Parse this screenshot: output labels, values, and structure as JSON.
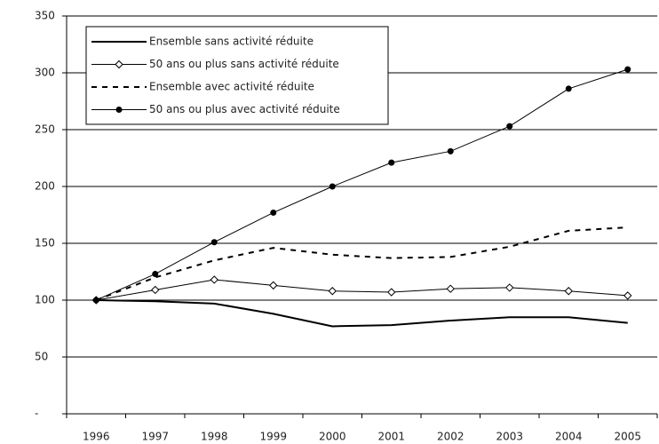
{
  "chart_data": {
    "type": "line",
    "categories": [
      "1996",
      "1997",
      "1998",
      "1999",
      "2000",
      "2001",
      "2002",
      "2003",
      "2004",
      "2005"
    ],
    "series": [
      {
        "name": "Ensemble sans activité réduite",
        "color": "#000000",
        "line": "solid",
        "marker": "none",
        "width": 2,
        "values": [
          100,
          99,
          97,
          88,
          77,
          78,
          82,
          85,
          85,
          80
        ]
      },
      {
        "name": "50 ans ou plus sans activité réduite",
        "color": "#000000",
        "line": "solid",
        "marker": "diamond",
        "width": 1,
        "values": [
          100,
          109,
          118,
          113,
          108,
          107,
          110,
          111,
          108,
          104
        ]
      },
      {
        "name": "Ensemble avec activité réduite",
        "color": "#000000",
        "line": "dashed",
        "marker": "none",
        "width": 2,
        "values": [
          100,
          120,
          135,
          146,
          140,
          137,
          138,
          147,
          161,
          164
        ]
      },
      {
        "name": "50 ans ou plus avec activité réduite",
        "color": "#000000",
        "line": "solid",
        "marker": "circle",
        "width": 1,
        "values": [
          100,
          123,
          151,
          177,
          200,
          221,
          231,
          253,
          286,
          303
        ]
      }
    ],
    "ylim": [
      0,
      350
    ],
    "yticks": [
      {
        "value": 0,
        "label": "-"
      },
      50,
      100,
      150,
      200,
      250,
      300,
      350
    ],
    "grid": true
  }
}
